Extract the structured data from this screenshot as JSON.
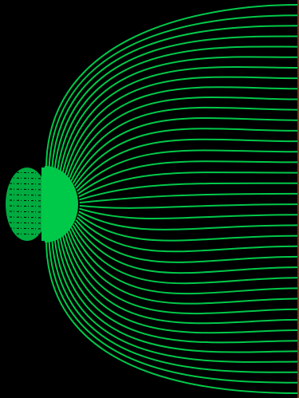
{
  "scene": {
    "background_color": "#000000",
    "line_color": "#00c94a",
    "edge_color": "#7a3a1a",
    "field_line_count": 38
  }
}
